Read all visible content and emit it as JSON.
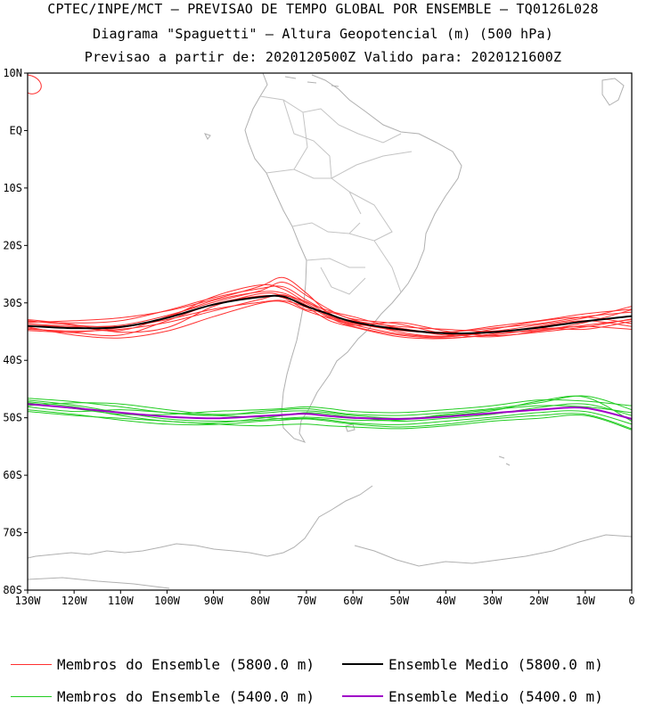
{
  "header": {
    "line1": "CPTEC/INPE/MCT — PREVISAO DE TEMPO GLOBAL POR ENSEMBLE — TQ0126L028",
    "line2": "Diagrama \"Spaguetti\" — Altura Geopotencial (m) (500 hPa)",
    "line3": "Previsao a partir de: 2020120500Z  Valido para: 2020121600Z"
  },
  "axes": {
    "lat_labels": [
      "10N",
      "EQ",
      "10S",
      "20S",
      "30S",
      "40S",
      "50S",
      "60S",
      "70S",
      "80S"
    ],
    "lat_values": [
      10,
      0,
      -10,
      -20,
      -30,
      -40,
      -50,
      -60,
      -70,
      -80
    ],
    "lon_labels": [
      "130W",
      "120W",
      "110W",
      "100W",
      "90W",
      "80W",
      "70W",
      "60W",
      "50W",
      "40W",
      "30W",
      "20W",
      "10W",
      "0"
    ],
    "lon_values": [
      -130,
      -120,
      -110,
      -100,
      -90,
      -80,
      -70,
      -60,
      -50,
      -40,
      -30,
      -20,
      -10,
      0
    ]
  },
  "colors": {
    "member_5800": "#ff3030",
    "mean_5800": "#000000",
    "member_5400": "#22cc22",
    "mean_5400": "#a000c8",
    "coast": "#b0b0b0"
  },
  "legend": [
    {
      "label": "Membros do Ensemble (5800.0 m)",
      "color": "#ff3030",
      "width": 1
    },
    {
      "label": "Ensemble Medio (5800.0 m)",
      "color": "#000000",
      "width": 2
    },
    {
      "label": "Membros do Ensemble (5400.0 m)",
      "color": "#22cc22",
      "width": 1
    },
    {
      "label": "Ensemble Medio (5400.0 m)",
      "color": "#a000c8",
      "width": 2
    }
  ],
  "chart_data": {
    "type": "line",
    "xlim": [
      -130,
      0
    ],
    "ylim": [
      -80,
      10
    ],
    "x": [
      -130,
      -120,
      -110,
      -100,
      -90,
      -80,
      -75,
      -70,
      -65,
      -60,
      -50,
      -40,
      -30,
      -20,
      -10,
      0
    ],
    "series": [
      {
        "name": "Ensemble Medio (5800.0 m)",
        "y": [
          -34,
          -34.4,
          -34.2,
          -32.6,
          -30.3,
          -29,
          -28.9,
          -30.6,
          -32,
          -33.3,
          -34.6,
          -35.3,
          -35.1,
          -34.3,
          -33.2,
          -32.3
        ]
      },
      {
        "name": "Ensemble Medio (5400.0 m)",
        "y": [
          -47.6,
          -48.3,
          -49.1,
          -49.8,
          -50.1,
          -49.7,
          -49.5,
          -49.3,
          -49.7,
          -50,
          -50.2,
          -49.8,
          -49.2,
          -48.6,
          -48.3,
          -50.2
        ]
      }
    ],
    "members_5800": [
      [
        -33.6,
        -34.2,
        -34.8,
        -32.4,
        -29.6,
        -28.1,
        -28.3,
        -30.1,
        -32.4,
        -33.6,
        -34.4,
        -35.6,
        -35.2,
        -34.8,
        -33.4,
        -31.2
      ],
      [
        -34.4,
        -35.2,
        -35.6,
        -33.1,
        -30.2,
        -28.8,
        -29.1,
        -31.2,
        -31.6,
        -32.9,
        -35.1,
        -35.8,
        -34.6,
        -33.2,
        -32.5,
        -33.6
      ],
      [
        -33.2,
        -33.5,
        -33.1,
        -31.3,
        -29.1,
        -27.5,
        -27.2,
        -29.5,
        -31.8,
        -33.9,
        -33.4,
        -34.9,
        -35.7,
        -35.1,
        -34.2,
        -32.8
      ],
      [
        -34.8,
        -35.1,
        -34.3,
        -32.9,
        -31.1,
        -29.9,
        -29.6,
        -30.8,
        -33.1,
        -34.2,
        -35.9,
        -36.2,
        -35.4,
        -34.1,
        -33.1,
        -34.1
      ],
      [
        -32.9,
        -33.8,
        -35.1,
        -34.3,
        -30.6,
        -28.4,
        -28.7,
        -29.8,
        -32.2,
        -33.5,
        -34.8,
        -35.1,
        -34.4,
        -33.6,
        -32.4,
        -31.6
      ],
      [
        -33.9,
        -34.1,
        -33.9,
        -32.2,
        -29.9,
        -27.9,
        -26.4,
        -28.7,
        -31.2,
        -32.8,
        -33.7,
        -35.4,
        -35.9,
        -34.9,
        -33.9,
        -32.9
      ],
      [
        -34.2,
        -35.6,
        -36.1,
        -34.9,
        -32.4,
        -30.1,
        -29.8,
        -31.4,
        -32.7,
        -33.8,
        -35.4,
        -35.9,
        -35.1,
        -34.4,
        -34.6,
        -33.2
      ],
      [
        -33.4,
        -33.1,
        -32.6,
        -31.4,
        -29.4,
        -27.1,
        -25.6,
        -28.3,
        -31.9,
        -33.1,
        -34.1,
        -34.6,
        -34.9,
        -33.8,
        -32.6,
        -30.6
      ],
      [
        -34.6,
        -34.9,
        -34.6,
        -33.4,
        -31.4,
        -29.4,
        -28.6,
        -30.4,
        -32.6,
        -34.1,
        -35.6,
        -36.1,
        -35.6,
        -34.6,
        -34.1,
        -34.6
      ],
      [
        -33.1,
        -33.9,
        -34.1,
        -32.6,
        -28.9,
        -26.9,
        -27.6,
        -29.9,
        -31.4,
        -32.4,
        -34.4,
        -35.1,
        -34.1,
        -33.1,
        -31.9,
        -31.1
      ]
    ],
    "members_5400": [
      [
        -47.2,
        -48.1,
        -49.6,
        -50.6,
        -50.9,
        -50.1,
        -49.6,
        -49.1,
        -49.4,
        -49.9,
        -50.6,
        -50.1,
        -49.4,
        -48.2,
        -47.6,
        -49.6
      ],
      [
        -48.1,
        -48.9,
        -48.6,
        -49.1,
        -49.6,
        -49.9,
        -50.2,
        -50.1,
        -50.4,
        -50.9,
        -51.2,
        -50.6,
        -49.9,
        -49.1,
        -48.9,
        -51.1
      ],
      [
        -46.6,
        -47.2,
        -48.1,
        -49.1,
        -49.6,
        -48.9,
        -48.6,
        -48.4,
        -48.9,
        -49.4,
        -49.6,
        -49.1,
        -48.4,
        -47.4,
        -46.2,
        -48.6
      ],
      [
        -48.6,
        -49.4,
        -50.4,
        -51.1,
        -51.2,
        -50.6,
        -50.4,
        -50.2,
        -50.6,
        -51.1,
        -51.6,
        -51.1,
        -50.2,
        -49.6,
        -49.4,
        -51.9
      ],
      [
        -47.9,
        -47.4,
        -47.6,
        -48.6,
        -49.4,
        -49.2,
        -48.9,
        -48.8,
        -49.1,
        -49.6,
        -50.1,
        -49.6,
        -48.8,
        -47.1,
        -46.4,
        -50.6
      ],
      [
        -46.9,
        -47.8,
        -49.1,
        -50.2,
        -50.6,
        -50.4,
        -50.1,
        -49.9,
        -50.1,
        -50.4,
        -50.4,
        -49.4,
        -48.6,
        -47.9,
        -48.1,
        -49.1
      ],
      [
        -48.9,
        -49.6,
        -50.1,
        -50.6,
        -51.1,
        -51.4,
        -51.2,
        -51.1,
        -51.4,
        -51.6,
        -51.9,
        -51.4,
        -50.6,
        -50.1,
        -49.6,
        -52.1
      ],
      [
        -47.4,
        -48.4,
        -49.4,
        -49.4,
        -48.9,
        -48.6,
        -48.4,
        -48.1,
        -48.4,
        -48.9,
        -49.1,
        -48.6,
        -47.9,
        -46.9,
        -47.1,
        -47.9
      ]
    ]
  }
}
